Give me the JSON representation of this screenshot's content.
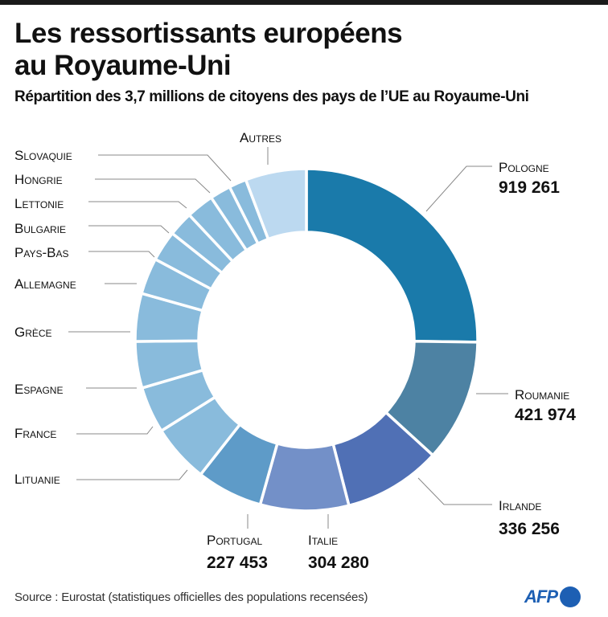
{
  "title_line1": "Les ressortissants européens",
  "title_line2": "au Royaume-Uni",
  "subtitle": "Répartition des 3,7 millions de citoyens des pays de l’UE au Royaume-Uni",
  "source": "Source : Eurostat (statistiques officielles des populations recensées)",
  "logo": "AFP",
  "chart_data": {
    "type": "pie",
    "variant": "donut",
    "title": "Répartition des 3,7 millions de citoyens des pays de l’UE au Royaume-Uni",
    "total": 3700000,
    "slices": [
      {
        "label": "Pologne",
        "value": 919261,
        "value_label": "919 261",
        "color": "#1a7aaa"
      },
      {
        "label": "Roumanie",
        "value": 421974,
        "value_label": "421 974",
        "color": "#4d82a3"
      },
      {
        "label": "Irlande",
        "value": 336256,
        "value_label": "336 256",
        "color": "#5070b5"
      },
      {
        "label": "Italie",
        "value": 304280,
        "value_label": "304 280",
        "color": "#7390c8"
      },
      {
        "label": "Portugal",
        "value": 227453,
        "value_label": "227 453",
        "color": "#5e9bc8"
      },
      {
        "label": "Lituanie",
        "value": 200000,
        "color": "#89bbdc"
      },
      {
        "label": "France",
        "value": 160000,
        "color": "#89bbdc"
      },
      {
        "label": "Espagne",
        "value": 160000,
        "color": "#89bbdc"
      },
      {
        "label": "Grèce",
        "value": 165000,
        "color": "#89bbdc"
      },
      {
        "label": "Allemagne",
        "value": 125000,
        "color": "#89bbdc"
      },
      {
        "label": "Pays-Bas",
        "value": 105000,
        "color": "#89bbdc"
      },
      {
        "label": "Bulgarie",
        "value": 85000,
        "color": "#89bbdc"
      },
      {
        "label": "Lettonie",
        "value": 95000,
        "color": "#89bbdc"
      },
      {
        "label": "Hongrie",
        "value": 72000,
        "color": "#89bbdc"
      },
      {
        "label": "Slovaquie",
        "value": 60000,
        "color": "#89bbdc"
      },
      {
        "label": "Autres",
        "value": 210000,
        "color": "#bcd9f0"
      }
    ]
  }
}
